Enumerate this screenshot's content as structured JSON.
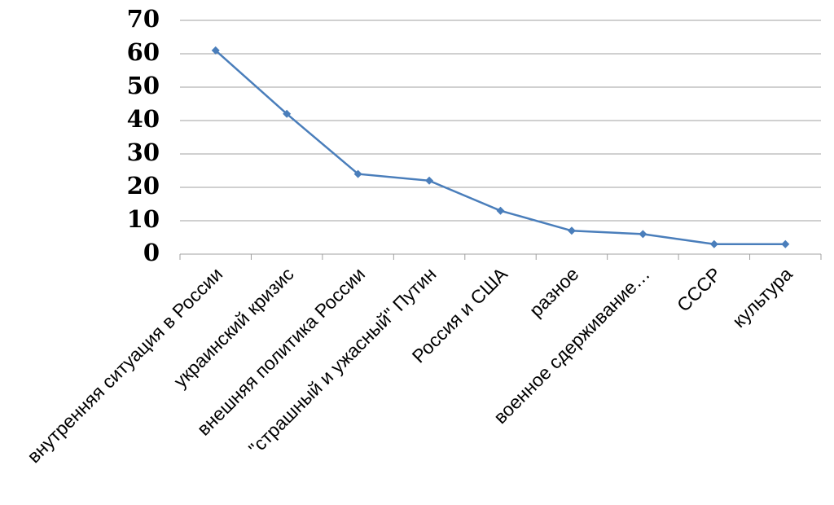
{
  "chart_data": {
    "type": "line",
    "categories": [
      "внутренняя ситуация в России",
      "украинский кризис",
      "внешняя политика России",
      "\"страшный и ужасный\" Путин",
      "Россия и США",
      "разное",
      "военное сдерживание…",
      "СССР",
      "культура"
    ],
    "values": [
      61,
      42,
      24,
      22,
      13,
      7,
      6,
      3,
      3
    ],
    "color": "#4a7ebb",
    "ylim": [
      0,
      70
    ],
    "yticks": [
      0,
      10,
      20,
      30,
      40,
      50,
      60,
      70
    ],
    "grid": true
  }
}
